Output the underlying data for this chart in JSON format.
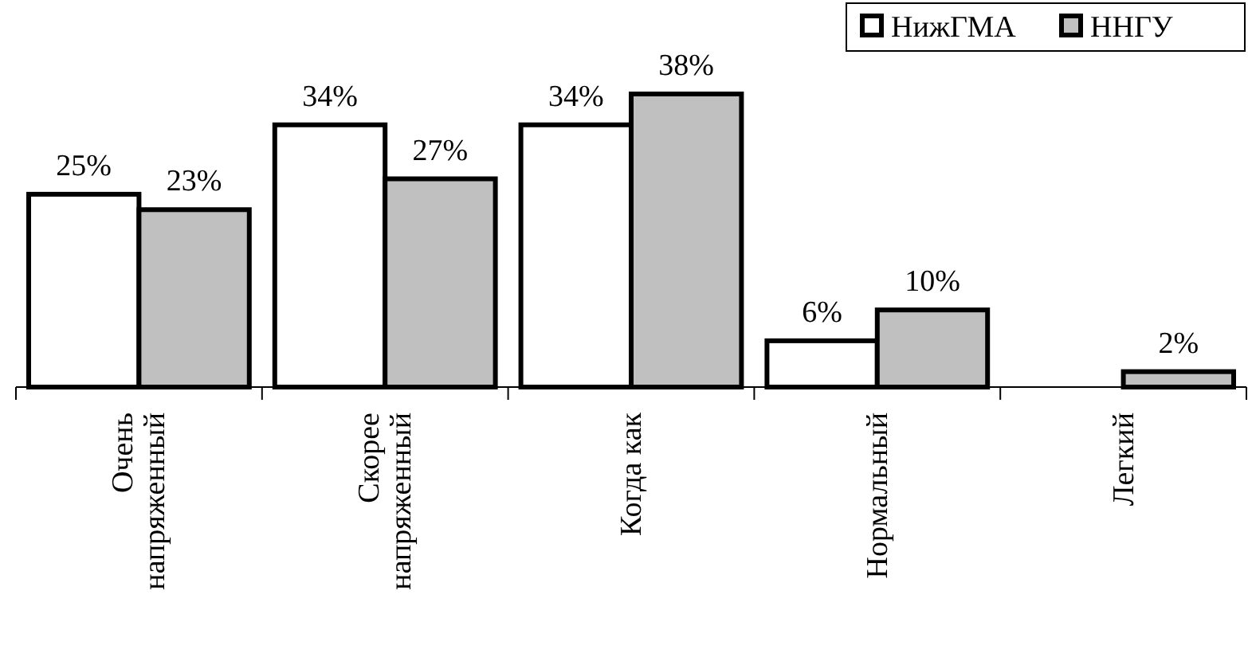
{
  "chart_data": {
    "type": "bar",
    "categories": [
      "Очень\nнапряженный",
      "Скорее\nнапряженный",
      "Когда как",
      "Нормальный",
      "Легкий"
    ],
    "series": [
      {
        "name": "НижГМА",
        "color": "#ffffff",
        "values": [
          25,
          34,
          34,
          6,
          null
        ],
        "value_labels": [
          "25%",
          "34%",
          "34%",
          "6%",
          null
        ]
      },
      {
        "name": "ННГУ",
        "color": "#c0c0c0",
        "values": [
          23,
          27,
          38,
          10,
          2
        ],
        "value_labels": [
          "23%",
          "27%",
          "38%",
          "10%",
          "2%"
        ]
      }
    ],
    "legend": "top right",
    "grid": false
  }
}
